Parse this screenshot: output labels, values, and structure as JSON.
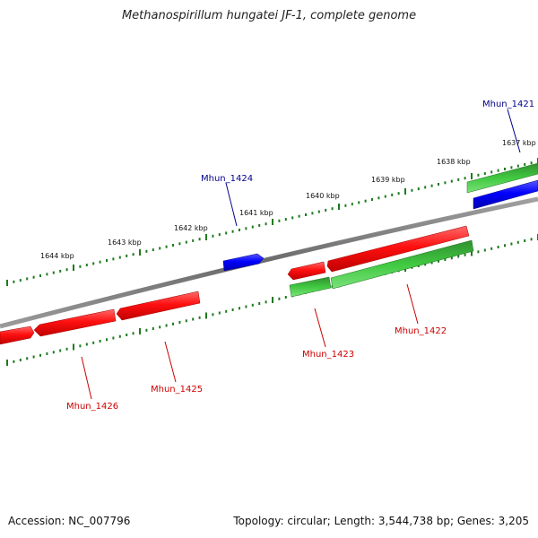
{
  "title": "Methanospirillum hungatei JF-1, complete genome",
  "footer": {
    "accession": "Accession: NC_007796",
    "summary": "Topology: circular; Length: 3,544,738 bp; Genes: 3,205"
  },
  "colors": {
    "backbone": "#7a7a7a",
    "forward_gene": "#ff0000",
    "reverse_gene": "#0000ff",
    "cds": "#22aa22",
    "label_red": "#cc0000",
    "label_blue": "#00008b",
    "tick_green": "#1e7a1e"
  },
  "map": {
    "kbp_ticks": [
      {
        "kbp": 1637,
        "label": "1637 kbp"
      },
      {
        "kbp": 1638,
        "label": "1638 kbp"
      },
      {
        "kbp": 1639,
        "label": "1639 kbp"
      },
      {
        "kbp": 1640,
        "label": "1640 kbp"
      },
      {
        "kbp": 1641,
        "label": "1641 kbp"
      },
      {
        "kbp": 1642,
        "label": "1642 kbp"
      },
      {
        "kbp": 1643,
        "label": "1643 kbp"
      },
      {
        "kbp": 1644,
        "label": "1644 kbp"
      }
    ],
    "genes": [
      {
        "id": "Mhun_1421",
        "label": "Mhun_1421",
        "strand": "reverse"
      },
      {
        "id": "Mhun_1422",
        "label": "Mhun_1422",
        "strand": "forward"
      },
      {
        "id": "Mhun_1423",
        "label": "Mhun_1423",
        "strand": "forward"
      },
      {
        "id": "Mhun_1424",
        "label": "Mhun_1424",
        "strand": "reverse"
      },
      {
        "id": "Mhun_1425",
        "label": "Mhun_1425",
        "strand": "forward"
      },
      {
        "id": "Mhun_1426",
        "label": "Mhun_1426",
        "strand": "forward"
      }
    ]
  }
}
